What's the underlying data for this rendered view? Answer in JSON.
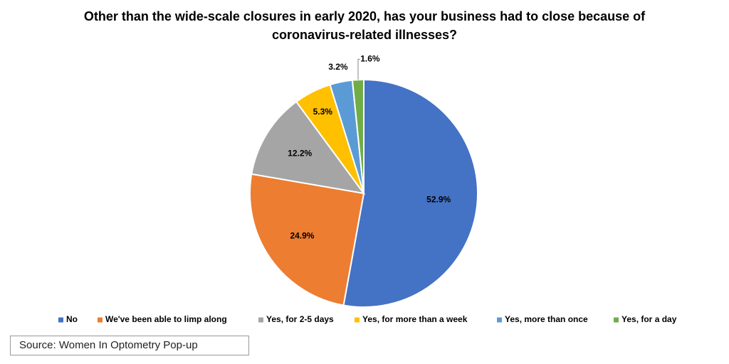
{
  "chart_data": {
    "type": "pie",
    "title": "Other than the wide-scale closures in early 2020, has your business had to close because of coronavirus-related illnesses?",
    "categories": [
      "No",
      "We've been able to limp along",
      "Yes, for 2-5 days",
      "Yes, for more than a week",
      "Yes, more than once",
      "Yes, for a day"
    ],
    "values": [
      52.9,
      24.9,
      12.2,
      5.3,
      3.2,
      1.6
    ],
    "value_labels": [
      "52.9%",
      "24.9%",
      "12.2%",
      "5.3%",
      "3.2%",
      "1.6%"
    ],
    "colors": [
      "#4472c4",
      "#ed7d31",
      "#a5a5a5",
      "#ffc000",
      "#5b9bd5",
      "#70ad47"
    ],
    "legend": "bottom",
    "source": "Source: Women In Optometry Pop-up"
  }
}
